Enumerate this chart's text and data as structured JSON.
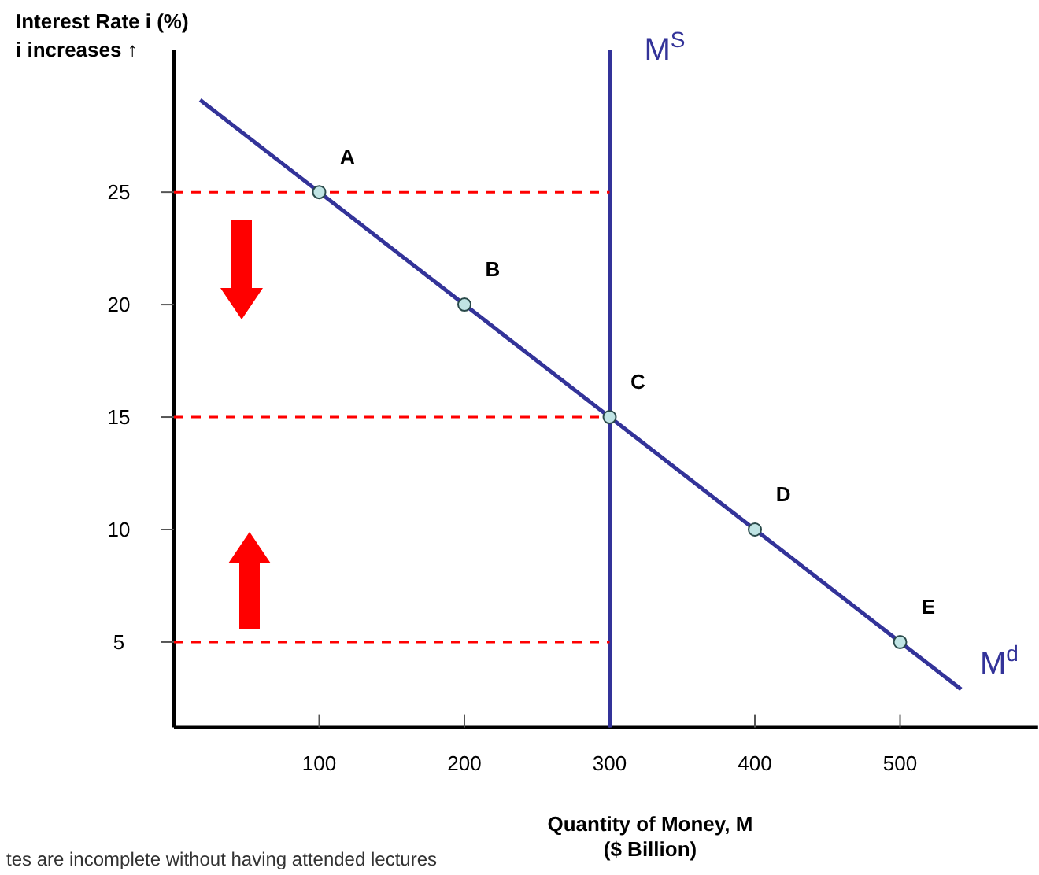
{
  "chart_data": {
    "type": "line",
    "ylabel": "Interest Rate i (%)",
    "xlabel": "Quantity of Money, M\n($ Billion)",
    "xlim": [
      0,
      595
    ],
    "ylim": [
      1.2,
      31.3
    ],
    "xticks": [
      100,
      200,
      300,
      400,
      500
    ],
    "yticks": [
      5,
      10,
      15,
      20,
      25
    ],
    "grid": false,
    "series": [
      {
        "color": "#ff0000",
        "line_style": "dashed",
        "x": [
          0,
          300
        ],
        "values": [
          25,
          25
        ]
      },
      {
        "color": "#ff0000",
        "line_style": "dashed",
        "x": [
          0,
          300
        ],
        "values": [
          15,
          15
        ]
      },
      {
        "color": "#ff0000",
        "line_style": "dashed",
        "x": [
          0,
          300
        ],
        "values": [
          5,
          5
        ]
      },
      {
        "name": "M$^{d}$",
        "color": "#333399",
        "line_style": "solid",
        "marker": "none",
        "x": [
          18,
          100,
          200,
          300,
          400,
          500,
          542
        ],
        "values": [
          29.1,
          25,
          20,
          15,
          10,
          5,
          2.9
        ]
      },
      {
        "type": "scatter",
        "color": "#c0e4e4",
        "marker": "circle",
        "x": [
          100,
          200,
          300,
          400,
          500
        ],
        "values": [
          25,
          20,
          15,
          10,
          5
        ]
      }
    ],
    "ref_lines": [
      {
        "axis": "x",
        "value": 300,
        "label": "M$^{S}$",
        "color": "#333399",
        "line_style": "solid"
      }
    ],
    "annotations": [
      "i increases ↑",
      "tes are incomplete without having attended lectures",
      {
        "text": "A",
        "x": 100,
        "y": 25
      },
      {
        "text": "B",
        "x": 200,
        "y": 20
      },
      {
        "text": "C",
        "x": 300,
        "y": 15
      },
      {
        "text": "D",
        "x": 400,
        "y": 10
      },
      {
        "text": "E",
        "x": 500,
        "y": 5
      }
    ]
  }
}
